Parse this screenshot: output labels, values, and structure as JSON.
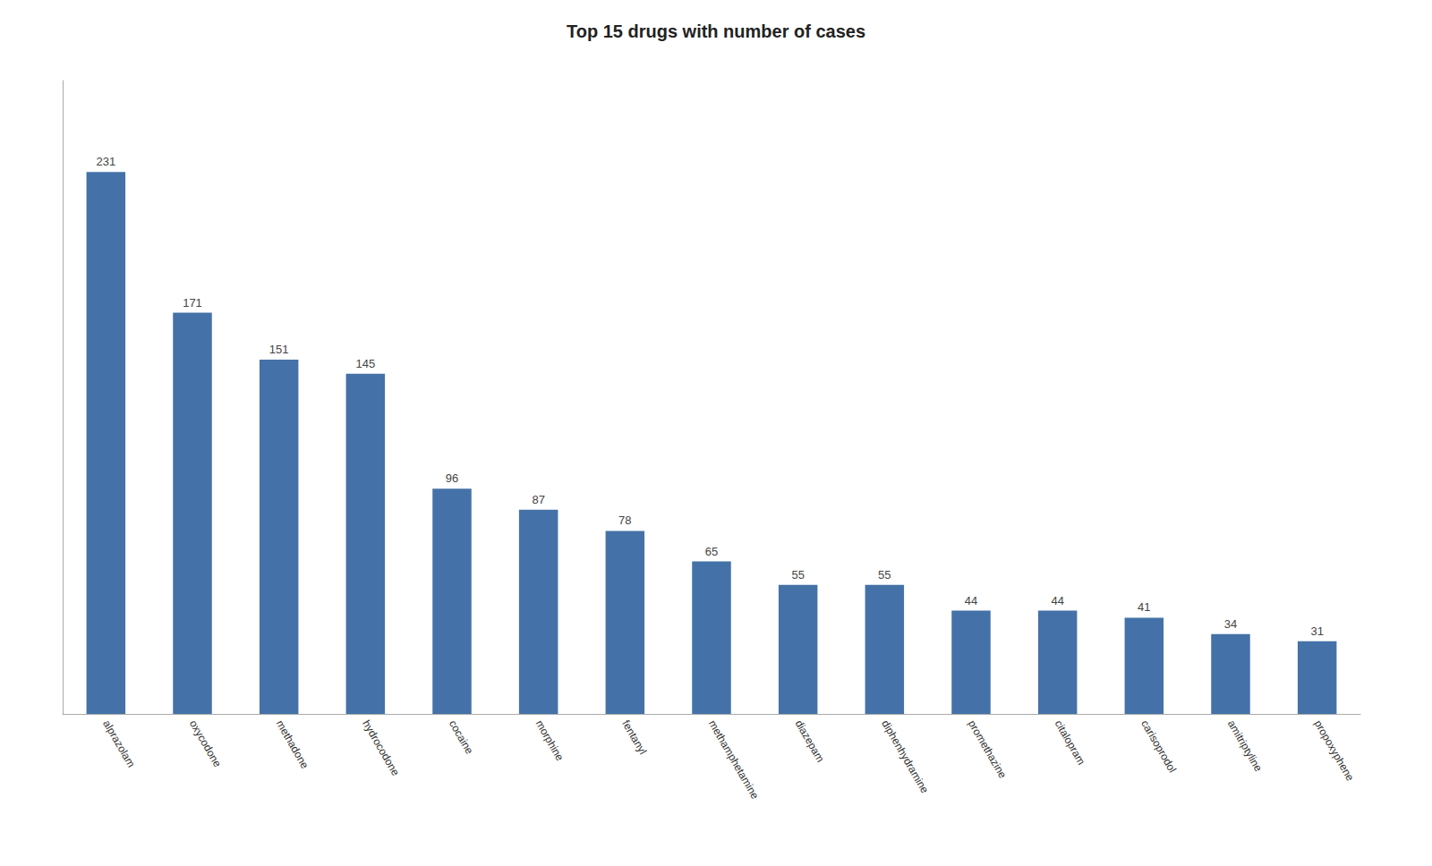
{
  "chart_data": {
    "type": "bar",
    "title": "Top 15 drugs with number of cases",
    "categories": [
      "alprazolam",
      "oxycodone",
      "methadone",
      "hydrocodone",
      "cocaine",
      "morphine",
      "fentanyl",
      "methamphetamine",
      "diazepam",
      "diphenhydramine",
      "promethazine",
      "citalopram",
      "carisoprodol",
      "amitriptyline",
      "propoxyphene"
    ],
    "values": [
      231,
      171,
      151,
      145,
      96,
      87,
      78,
      65,
      55,
      55,
      44,
      44,
      41,
      34,
      31
    ],
    "color": "#4472a8",
    "ylim": [
      0,
      270
    ],
    "grid": false,
    "data_labels": true,
    "tick_labels": "x"
  }
}
